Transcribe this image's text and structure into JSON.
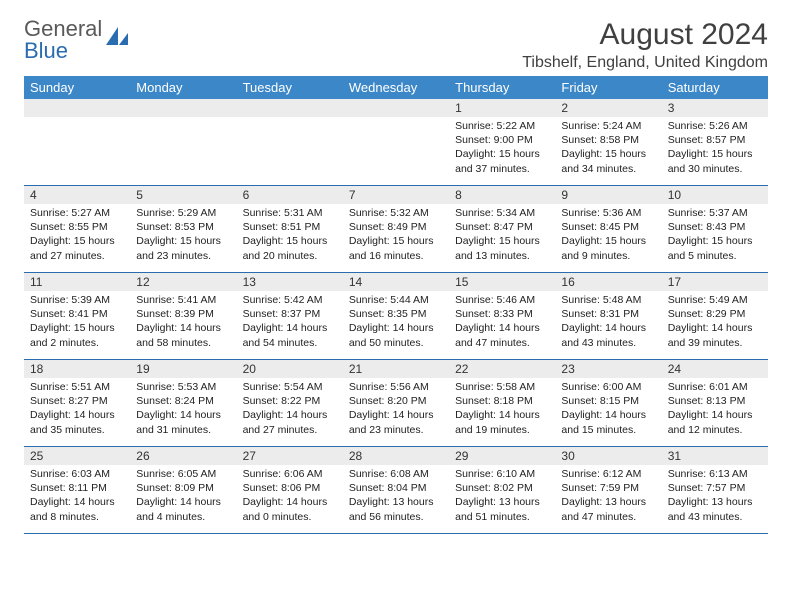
{
  "logo": {
    "line1": "General",
    "line2": "Blue"
  },
  "title": "August 2024",
  "location": "Tibshelf, England, United Kingdom",
  "colors": {
    "header_bg": "#3c87c7",
    "header_text": "#ffffff",
    "week_border": "#2a6cb0",
    "daynum_bg": "#ececec",
    "text": "#222222",
    "logo_gray": "#5a5a5a",
    "logo_blue": "#2a6cb0"
  },
  "day_names": [
    "Sunday",
    "Monday",
    "Tuesday",
    "Wednesday",
    "Thursday",
    "Friday",
    "Saturday"
  ],
  "weeks": [
    [
      {
        "n": "",
        "sunrise": "",
        "sunset": "",
        "daylight": ""
      },
      {
        "n": "",
        "sunrise": "",
        "sunset": "",
        "daylight": ""
      },
      {
        "n": "",
        "sunrise": "",
        "sunset": "",
        "daylight": ""
      },
      {
        "n": "",
        "sunrise": "",
        "sunset": "",
        "daylight": ""
      },
      {
        "n": "1",
        "sunrise": "Sunrise: 5:22 AM",
        "sunset": "Sunset: 9:00 PM",
        "daylight": "Daylight: 15 hours and 37 minutes."
      },
      {
        "n": "2",
        "sunrise": "Sunrise: 5:24 AM",
        "sunset": "Sunset: 8:58 PM",
        "daylight": "Daylight: 15 hours and 34 minutes."
      },
      {
        "n": "3",
        "sunrise": "Sunrise: 5:26 AM",
        "sunset": "Sunset: 8:57 PM",
        "daylight": "Daylight: 15 hours and 30 minutes."
      }
    ],
    [
      {
        "n": "4",
        "sunrise": "Sunrise: 5:27 AM",
        "sunset": "Sunset: 8:55 PM",
        "daylight": "Daylight: 15 hours and 27 minutes."
      },
      {
        "n": "5",
        "sunrise": "Sunrise: 5:29 AM",
        "sunset": "Sunset: 8:53 PM",
        "daylight": "Daylight: 15 hours and 23 minutes."
      },
      {
        "n": "6",
        "sunrise": "Sunrise: 5:31 AM",
        "sunset": "Sunset: 8:51 PM",
        "daylight": "Daylight: 15 hours and 20 minutes."
      },
      {
        "n": "7",
        "sunrise": "Sunrise: 5:32 AM",
        "sunset": "Sunset: 8:49 PM",
        "daylight": "Daylight: 15 hours and 16 minutes."
      },
      {
        "n": "8",
        "sunrise": "Sunrise: 5:34 AM",
        "sunset": "Sunset: 8:47 PM",
        "daylight": "Daylight: 15 hours and 13 minutes."
      },
      {
        "n": "9",
        "sunrise": "Sunrise: 5:36 AM",
        "sunset": "Sunset: 8:45 PM",
        "daylight": "Daylight: 15 hours and 9 minutes."
      },
      {
        "n": "10",
        "sunrise": "Sunrise: 5:37 AM",
        "sunset": "Sunset: 8:43 PM",
        "daylight": "Daylight: 15 hours and 5 minutes."
      }
    ],
    [
      {
        "n": "11",
        "sunrise": "Sunrise: 5:39 AM",
        "sunset": "Sunset: 8:41 PM",
        "daylight": "Daylight: 15 hours and 2 minutes."
      },
      {
        "n": "12",
        "sunrise": "Sunrise: 5:41 AM",
        "sunset": "Sunset: 8:39 PM",
        "daylight": "Daylight: 14 hours and 58 minutes."
      },
      {
        "n": "13",
        "sunrise": "Sunrise: 5:42 AM",
        "sunset": "Sunset: 8:37 PM",
        "daylight": "Daylight: 14 hours and 54 minutes."
      },
      {
        "n": "14",
        "sunrise": "Sunrise: 5:44 AM",
        "sunset": "Sunset: 8:35 PM",
        "daylight": "Daylight: 14 hours and 50 minutes."
      },
      {
        "n": "15",
        "sunrise": "Sunrise: 5:46 AM",
        "sunset": "Sunset: 8:33 PM",
        "daylight": "Daylight: 14 hours and 47 minutes."
      },
      {
        "n": "16",
        "sunrise": "Sunrise: 5:48 AM",
        "sunset": "Sunset: 8:31 PM",
        "daylight": "Daylight: 14 hours and 43 minutes."
      },
      {
        "n": "17",
        "sunrise": "Sunrise: 5:49 AM",
        "sunset": "Sunset: 8:29 PM",
        "daylight": "Daylight: 14 hours and 39 minutes."
      }
    ],
    [
      {
        "n": "18",
        "sunrise": "Sunrise: 5:51 AM",
        "sunset": "Sunset: 8:27 PM",
        "daylight": "Daylight: 14 hours and 35 minutes."
      },
      {
        "n": "19",
        "sunrise": "Sunrise: 5:53 AM",
        "sunset": "Sunset: 8:24 PM",
        "daylight": "Daylight: 14 hours and 31 minutes."
      },
      {
        "n": "20",
        "sunrise": "Sunrise: 5:54 AM",
        "sunset": "Sunset: 8:22 PM",
        "daylight": "Daylight: 14 hours and 27 minutes."
      },
      {
        "n": "21",
        "sunrise": "Sunrise: 5:56 AM",
        "sunset": "Sunset: 8:20 PM",
        "daylight": "Daylight: 14 hours and 23 minutes."
      },
      {
        "n": "22",
        "sunrise": "Sunrise: 5:58 AM",
        "sunset": "Sunset: 8:18 PM",
        "daylight": "Daylight: 14 hours and 19 minutes."
      },
      {
        "n": "23",
        "sunrise": "Sunrise: 6:00 AM",
        "sunset": "Sunset: 8:15 PM",
        "daylight": "Daylight: 14 hours and 15 minutes."
      },
      {
        "n": "24",
        "sunrise": "Sunrise: 6:01 AM",
        "sunset": "Sunset: 8:13 PM",
        "daylight": "Daylight: 14 hours and 12 minutes."
      }
    ],
    [
      {
        "n": "25",
        "sunrise": "Sunrise: 6:03 AM",
        "sunset": "Sunset: 8:11 PM",
        "daylight": "Daylight: 14 hours and 8 minutes."
      },
      {
        "n": "26",
        "sunrise": "Sunrise: 6:05 AM",
        "sunset": "Sunset: 8:09 PM",
        "daylight": "Daylight: 14 hours and 4 minutes."
      },
      {
        "n": "27",
        "sunrise": "Sunrise: 6:06 AM",
        "sunset": "Sunset: 8:06 PM",
        "daylight": "Daylight: 14 hours and 0 minutes."
      },
      {
        "n": "28",
        "sunrise": "Sunrise: 6:08 AM",
        "sunset": "Sunset: 8:04 PM",
        "daylight": "Daylight: 13 hours and 56 minutes."
      },
      {
        "n": "29",
        "sunrise": "Sunrise: 6:10 AM",
        "sunset": "Sunset: 8:02 PM",
        "daylight": "Daylight: 13 hours and 51 minutes."
      },
      {
        "n": "30",
        "sunrise": "Sunrise: 6:12 AM",
        "sunset": "Sunset: 7:59 PM",
        "daylight": "Daylight: 13 hours and 47 minutes."
      },
      {
        "n": "31",
        "sunrise": "Sunrise: 6:13 AM",
        "sunset": "Sunset: 7:57 PM",
        "daylight": "Daylight: 13 hours and 43 minutes."
      }
    ]
  ]
}
